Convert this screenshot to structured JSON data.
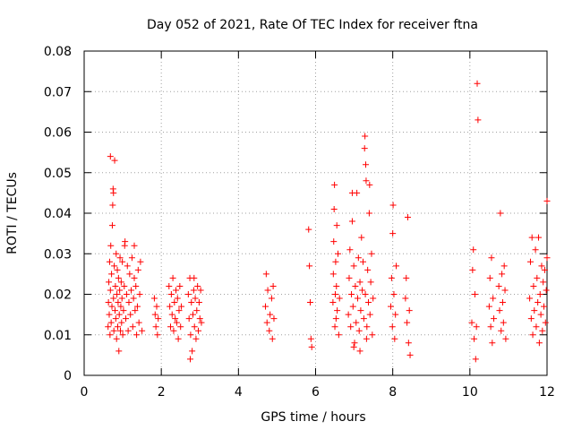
{
  "chart_data": {
    "type": "scatter",
    "title": "Day 052 of 2021, Rate Of TEC Index for receiver ftna",
    "xlabel": "GPS time / hours",
    "ylabel": "ROTI / TECUs",
    "xlim": [
      0,
      12
    ],
    "ylim": [
      0,
      0.08
    ],
    "x_ticks": [
      0,
      2,
      4,
      6,
      8,
      10,
      12
    ],
    "x_tick_labels": [
      "0",
      "2",
      "4",
      "6",
      "8",
      "10",
      "12"
    ],
    "y_ticks": [
      0,
      0.01,
      0.02,
      0.03,
      0.04,
      0.05,
      0.06,
      0.07,
      0.08
    ],
    "y_tick_labels": [
      "0",
      "0.01",
      "0.02",
      "0.03",
      "0.04",
      "0.05",
      "0.06",
      "0.07",
      "0.08"
    ],
    "grid": true,
    "marker": "plus",
    "marker_color": "#ff0000",
    "series": [
      {
        "name": "ROTI",
        "points": [
          [
            0.62,
            0.012
          ],
          [
            0.63,
            0.018
          ],
          [
            0.64,
            0.023
          ],
          [
            0.65,
            0.015
          ],
          [
            0.66,
            0.028
          ],
          [
            0.67,
            0.01
          ],
          [
            0.68,
            0.021
          ],
          [
            0.69,
            0.032
          ],
          [
            0.7,
            0.013
          ],
          [
            0.71,
            0.025
          ],
          [
            0.72,
            0.017
          ],
          [
            0.73,
            0.037
          ],
          [
            0.74,
            0.042
          ],
          [
            0.75,
            0.046
          ],
          [
            0.76,
            0.019
          ],
          [
            0.77,
            0.011
          ],
          [
            0.78,
            0.027
          ],
          [
            0.79,
            0.053
          ],
          [
            0.8,
            0.016
          ],
          [
            0.81,
            0.022
          ],
          [
            0.82,
            0.014
          ],
          [
            0.83,
            0.03
          ],
          [
            0.84,
            0.009
          ],
          [
            0.85,
            0.02
          ],
          [
            0.86,
            0.026
          ],
          [
            0.87,
            0.012
          ],
          [
            0.88,
            0.018
          ],
          [
            0.89,
            0.024
          ],
          [
            0.9,
            0.006
          ],
          [
            0.91,
            0.015
          ],
          [
            0.92,
            0.021
          ],
          [
            0.93,
            0.029
          ],
          [
            0.94,
            0.011
          ],
          [
            0.95,
            0.017
          ],
          [
            0.96,
            0.023
          ],
          [
            0.97,
            0.013
          ],
          [
            0.98,
            0.019
          ],
          [
            0.99,
            0.028
          ],
          [
            1.0,
            0.01
          ],
          [
            1.02,
            0.016
          ],
          [
            1.04,
            0.022
          ],
          [
            1.06,
            0.033
          ],
          [
            1.08,
            0.014
          ],
          [
            1.1,
            0.02
          ],
          [
            1.12,
            0.027
          ],
          [
            1.14,
            0.011
          ],
          [
            1.16,
            0.018
          ],
          [
            1.18,
            0.025
          ],
          [
            1.2,
            0.015
          ],
          [
            1.22,
            0.021
          ],
          [
            1.24,
            0.029
          ],
          [
            1.26,
            0.012
          ],
          [
            1.28,
            0.019
          ],
          [
            1.3,
            0.024
          ],
          [
            1.32,
            0.016
          ],
          [
            1.34,
            0.022
          ],
          [
            1.36,
            0.01
          ],
          [
            1.38,
            0.017
          ],
          [
            1.4,
            0.026
          ],
          [
            1.42,
            0.013
          ],
          [
            1.44,
            0.02
          ],
          [
            1.46,
            0.028
          ],
          [
            1.5,
            0.011
          ],
          [
            0.68,
            0.054
          ],
          [
            0.76,
            0.045
          ],
          [
            1.05,
            0.032
          ],
          [
            1.3,
            0.032
          ],
          [
            1.82,
            0.019
          ],
          [
            1.84,
            0.015
          ],
          [
            1.86,
            0.012
          ],
          [
            1.88,
            0.017
          ],
          [
            1.9,
            0.01
          ],
          [
            1.92,
            0.014
          ],
          [
            2.2,
            0.022
          ],
          [
            2.22,
            0.017
          ],
          [
            2.24,
            0.012
          ],
          [
            2.26,
            0.02
          ],
          [
            2.28,
            0.015
          ],
          [
            2.3,
            0.024
          ],
          [
            2.32,
            0.011
          ],
          [
            2.34,
            0.018
          ],
          [
            2.36,
            0.014
          ],
          [
            2.38,
            0.021
          ],
          [
            2.4,
            0.013
          ],
          [
            2.42,
            0.019
          ],
          [
            2.44,
            0.009
          ],
          [
            2.46,
            0.016
          ],
          [
            2.48,
            0.022
          ],
          [
            2.5,
            0.012
          ],
          [
            2.52,
            0.017
          ],
          [
            2.7,
            0.02
          ],
          [
            2.72,
            0.014
          ],
          [
            2.74,
            0.024
          ],
          [
            2.76,
            0.01
          ],
          [
            2.78,
            0.018
          ],
          [
            2.8,
            0.006
          ],
          [
            2.82,
            0.015
          ],
          [
            2.84,
            0.021
          ],
          [
            2.86,
            0.012
          ],
          [
            2.88,
            0.019
          ],
          [
            2.9,
            0.009
          ],
          [
            2.92,
            0.016
          ],
          [
            2.94,
            0.022
          ],
          [
            2.96,
            0.011
          ],
          [
            2.98,
            0.018
          ],
          [
            3.0,
            0.014
          ],
          [
            3.02,
            0.021
          ],
          [
            3.04,
            0.013
          ],
          [
            2.75,
            0.004
          ],
          [
            2.85,
            0.024
          ],
          [
            4.7,
            0.017
          ],
          [
            4.72,
            0.025
          ],
          [
            4.74,
            0.013
          ],
          [
            4.76,
            0.021
          ],
          [
            4.8,
            0.011
          ],
          [
            4.82,
            0.015
          ],
          [
            4.86,
            0.019
          ],
          [
            4.88,
            0.009
          ],
          [
            4.9,
            0.022
          ],
          [
            4.92,
            0.014
          ],
          [
            5.82,
            0.036
          ],
          [
            5.84,
            0.027
          ],
          [
            5.86,
            0.018
          ],
          [
            5.88,
            0.009
          ],
          [
            5.9,
            0.007
          ],
          [
            6.45,
            0.018
          ],
          [
            6.46,
            0.025
          ],
          [
            6.47,
            0.033
          ],
          [
            6.48,
            0.041
          ],
          [
            6.49,
            0.047
          ],
          [
            6.5,
            0.012
          ],
          [
            6.51,
            0.02
          ],
          [
            6.52,
            0.028
          ],
          [
            6.53,
            0.014
          ],
          [
            6.54,
            0.022
          ],
          [
            6.55,
            0.037
          ],
          [
            6.56,
            0.016
          ],
          [
            6.58,
            0.03
          ],
          [
            6.6,
            0.01
          ],
          [
            6.62,
            0.019
          ],
          [
            6.85,
            0.015
          ],
          [
            6.87,
            0.024
          ],
          [
            6.89,
            0.031
          ],
          [
            6.91,
            0.012
          ],
          [
            6.93,
            0.02
          ],
          [
            6.95,
            0.038
          ],
          [
            6.97,
            0.017
          ],
          [
            6.99,
            0.027
          ],
          [
            7.01,
            0.008
          ],
          [
            7.03,
            0.022
          ],
          [
            7.05,
            0.013
          ],
          [
            7.07,
            0.045
          ],
          [
            7.09,
            0.019
          ],
          [
            7.11,
            0.029
          ],
          [
            7.13,
            0.011
          ],
          [
            7.15,
            0.023
          ],
          [
            7.17,
            0.016
          ],
          [
            7.19,
            0.034
          ],
          [
            7.21,
            0.021
          ],
          [
            7.23,
            0.028
          ],
          [
            7.25,
            0.014
          ],
          [
            7.27,
            0.056
          ],
          [
            7.29,
            0.02
          ],
          [
            7.31,
            0.048
          ],
          [
            7.33,
            0.012
          ],
          [
            7.35,
            0.026
          ],
          [
            7.37,
            0.018
          ],
          [
            7.39,
            0.04
          ],
          [
            7.41,
            0.015
          ],
          [
            7.43,
            0.023
          ],
          [
            7.45,
            0.03
          ],
          [
            7.47,
            0.01
          ],
          [
            7.49,
            0.019
          ],
          [
            6.95,
            0.045
          ],
          [
            7.28,
            0.059
          ],
          [
            7.3,
            0.052
          ],
          [
            7.4,
            0.047
          ],
          [
            6.99,
            0.007
          ],
          [
            7.15,
            0.006
          ],
          [
            7.32,
            0.009
          ],
          [
            7.95,
            0.017
          ],
          [
            7.97,
            0.024
          ],
          [
            7.99,
            0.012
          ],
          [
            8.0,
            0.035
          ],
          [
            8.01,
            0.042
          ],
          [
            8.03,
            0.02
          ],
          [
            8.05,
            0.009
          ],
          [
            8.07,
            0.015
          ],
          [
            8.09,
            0.027
          ],
          [
            8.33,
            0.019
          ],
          [
            8.35,
            0.024
          ],
          [
            8.37,
            0.013
          ],
          [
            8.39,
            0.039
          ],
          [
            8.41,
            0.008
          ],
          [
            8.43,
            0.016
          ],
          [
            8.45,
            0.005
          ],
          [
            10.05,
            0.013
          ],
          [
            10.07,
            0.026
          ],
          [
            10.09,
            0.031
          ],
          [
            10.11,
            0.009
          ],
          [
            10.13,
            0.02
          ],
          [
            10.15,
            0.004
          ],
          [
            10.17,
            0.012
          ],
          [
            10.19,
            0.072
          ],
          [
            10.21,
            0.063
          ],
          [
            10.5,
            0.017
          ],
          [
            10.52,
            0.024
          ],
          [
            10.54,
            0.012
          ],
          [
            10.56,
            0.029
          ],
          [
            10.58,
            0.008
          ],
          [
            10.6,
            0.019
          ],
          [
            10.62,
            0.014
          ],
          [
            10.75,
            0.022
          ],
          [
            10.77,
            0.016
          ],
          [
            10.79,
            0.04
          ],
          [
            10.81,
            0.011
          ],
          [
            10.83,
            0.025
          ],
          [
            10.85,
            0.018
          ],
          [
            10.87,
            0.013
          ],
          [
            10.89,
            0.027
          ],
          [
            10.91,
            0.021
          ],
          [
            10.93,
            0.009
          ],
          [
            11.55,
            0.019
          ],
          [
            11.57,
            0.028
          ],
          [
            11.59,
            0.014
          ],
          [
            11.61,
            0.034
          ],
          [
            11.63,
            0.01
          ],
          [
            11.65,
            0.022
          ],
          [
            11.67,
            0.016
          ],
          [
            11.7,
            0.031
          ],
          [
            11.72,
            0.012
          ],
          [
            11.74,
            0.024
          ],
          [
            11.76,
            0.018
          ],
          [
            11.78,
            0.034
          ],
          [
            11.8,
            0.008
          ],
          [
            11.82,
            0.02
          ],
          [
            11.84,
            0.015
          ],
          [
            11.86,
            0.027
          ],
          [
            11.88,
            0.011
          ],
          [
            11.9,
            0.023
          ],
          [
            11.92,
            0.017
          ],
          [
            11.94,
            0.026
          ],
          [
            11.96,
            0.013
          ],
          [
            11.98,
            0.021
          ],
          [
            12.0,
            0.043
          ],
          [
            12.0,
            0.029
          ]
        ]
      }
    ]
  }
}
